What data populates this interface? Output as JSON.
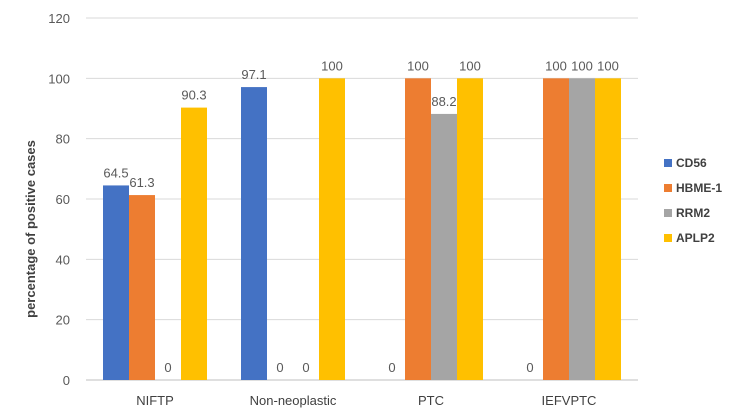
{
  "chart_data": {
    "type": "bar",
    "title": "",
    "xlabel": "",
    "ylabel": "percentage of positive cases",
    "ylim": [
      0,
      120
    ],
    "yticks": [
      0,
      20,
      40,
      60,
      80,
      100,
      120
    ],
    "grid": true,
    "legend_position": "right",
    "categories": [
      "NIFTP",
      "Non-neoplastic",
      "PTC",
      "IEFVPTC"
    ],
    "series": [
      {
        "name": "CD56",
        "color": "#4472C4",
        "values": [
          64.5,
          97.1,
          0,
          0
        ],
        "labels": [
          "64.5",
          "97.1",
          "0",
          "0"
        ]
      },
      {
        "name": "HBME-1",
        "color": "#ED7D31",
        "values": [
          61.3,
          0,
          100,
          100
        ],
        "labels": [
          "61.3",
          "0",
          "100",
          "100"
        ]
      },
      {
        "name": "RRM2",
        "color": "#A5A5A5",
        "values": [
          0,
          0,
          88.2,
          100
        ],
        "labels": [
          "0",
          "0",
          "88.2",
          "100"
        ]
      },
      {
        "name": "APLP2",
        "color": "#FFC000",
        "values": [
          90.3,
          100,
          100,
          100
        ],
        "labels": [
          "90.3",
          "100",
          "100",
          "100"
        ]
      }
    ]
  }
}
